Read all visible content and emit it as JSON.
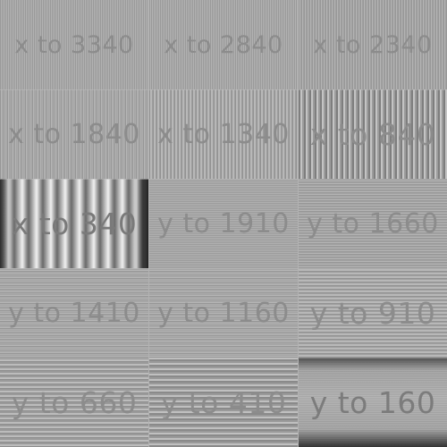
{
  "tiles": [
    {
      "label": "x to 3340",
      "orientation": "vertical"
    },
    {
      "label": "x to 2840",
      "orientation": "vertical"
    },
    {
      "label": "x to 2340",
      "orientation": "vertical"
    },
    {
      "label": "x to 1840",
      "orientation": "vertical"
    },
    {
      "label": "x to 1340",
      "orientation": "vertical"
    },
    {
      "label": "x to 840",
      "orientation": "vertical"
    },
    {
      "label": "x to 340",
      "orientation": "vertical"
    },
    {
      "label": "y to 1910",
      "orientation": "horizontal"
    },
    {
      "label": "y to 1660",
      "orientation": "horizontal"
    },
    {
      "label": "y to 1410",
      "orientation": "horizontal"
    },
    {
      "label": "y to 1160",
      "orientation": "horizontal"
    },
    {
      "label": "y to 910",
      "orientation": "horizontal"
    },
    {
      "label": "y to 660",
      "orientation": "horizontal"
    },
    {
      "label": "y to 410",
      "orientation": "horizontal"
    },
    {
      "label": "y to 160",
      "orientation": "horizontal"
    }
  ],
  "colors": {
    "background": "#a4a4a4",
    "label_text": "#8c8c8c"
  }
}
